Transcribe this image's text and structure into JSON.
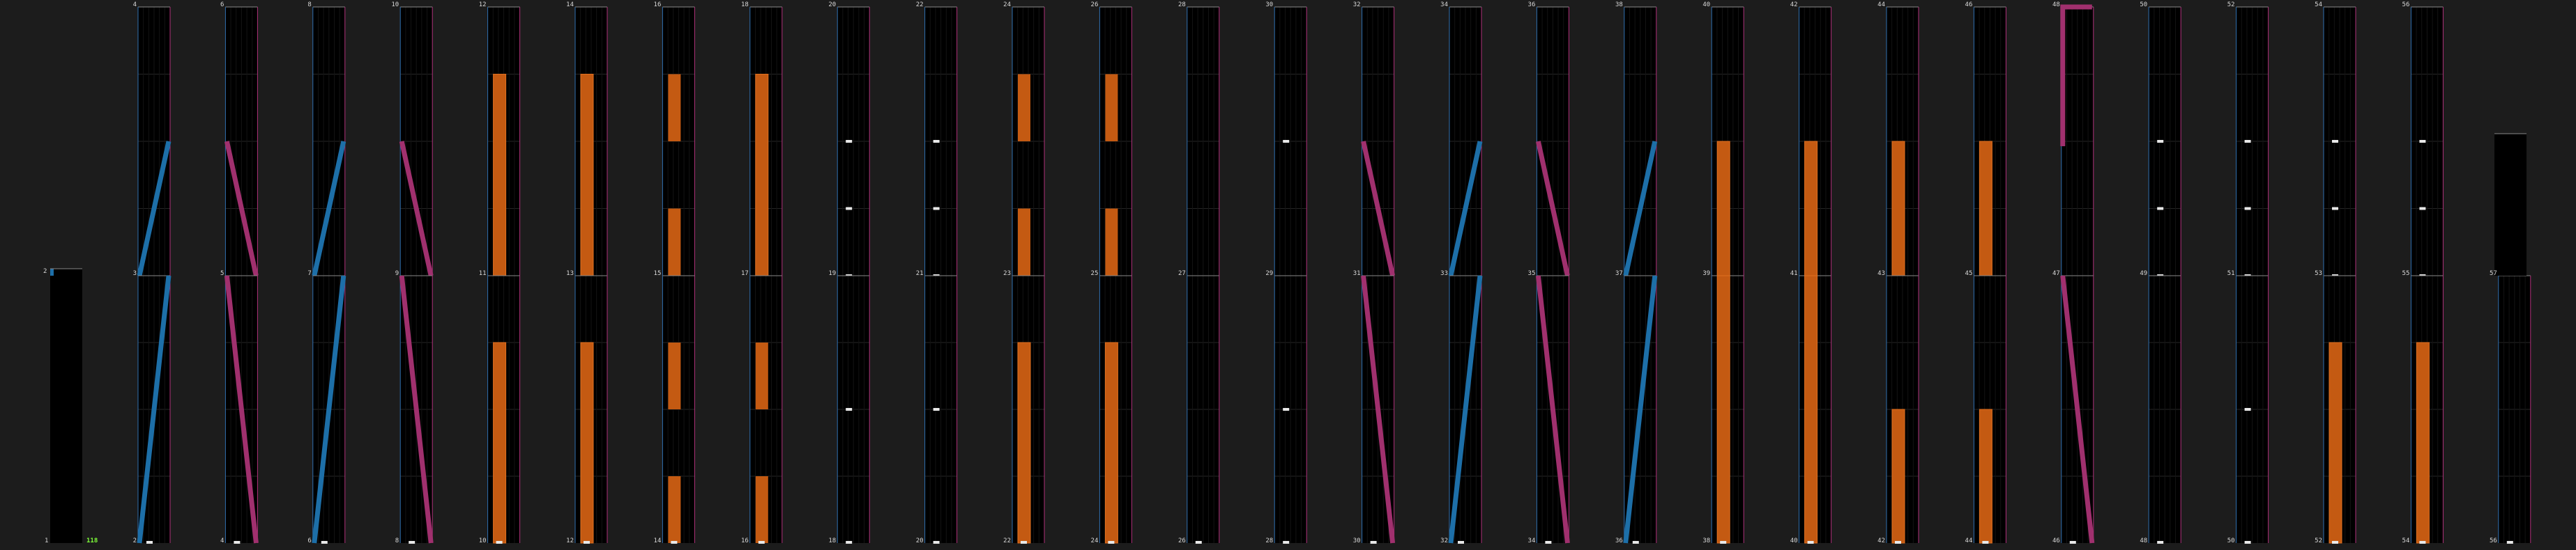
{
  "colors": {
    "background": "#1c1c1c",
    "column_fill": "#000000",
    "grid": "#262626",
    "edge_left": "#2f6fb0",
    "edge_right": "#b0307a",
    "edge_top": "#8a8a8a",
    "note_orange": "#c45a12",
    "ramp_blue": "#1d6fa8",
    "ramp_magenta": "#a0306e",
    "marker": "#e8e8e8",
    "counter": "#7fff3a"
  },
  "counter": {
    "text": "118"
  },
  "top_row": [
    {
      "label": "4",
      "lane": 0,
      "event": "ramp-up",
      "level": 0.5
    },
    {
      "label": "6",
      "lane": 1,
      "event": "ramp-down",
      "level": 0.5
    },
    {
      "label": "8",
      "lane": 2,
      "event": "ramp-up",
      "level": 0.5
    },
    {
      "label": "10",
      "lane": 3,
      "event": "ramp-down",
      "level": 0.5
    },
    {
      "label": "12",
      "lane": 4,
      "event": "bar",
      "level": 0.75
    },
    {
      "label": "14",
      "lane": 5,
      "event": "bar",
      "level": 0.75
    },
    {
      "label": "16",
      "lane": 6,
      "event": "split-bar",
      "level": 0.25
    },
    {
      "label": "18",
      "lane": 7,
      "event": "bar",
      "level": 0.75
    },
    {
      "label": "20",
      "lane": 8,
      "event": "ticks",
      "level": 0
    },
    {
      "label": "22",
      "lane": 9,
      "event": "ticks",
      "level": 0
    },
    {
      "label": "24",
      "lane": 10,
      "event": "split-bar",
      "level": 0.25
    },
    {
      "label": "26",
      "lane": 11,
      "event": "split-bar",
      "level": 0.25
    },
    {
      "label": "28",
      "lane": 12,
      "event": "empty",
      "level": 0
    },
    {
      "label": "30",
      "lane": 13,
      "event": "tick-mid",
      "level": 0
    },
    {
      "label": "32",
      "lane": 14,
      "event": "ramp-down",
      "level": 0.5
    },
    {
      "label": "34",
      "lane": 15,
      "event": "ramp-up",
      "level": 0.5
    },
    {
      "label": "36",
      "lane": 16,
      "event": "ramp-down",
      "level": 0.5
    },
    {
      "label": "38",
      "lane": 17,
      "event": "ramp-up",
      "level": 0.5
    },
    {
      "label": "40",
      "lane": 18,
      "event": "bar",
      "level": 0.5
    },
    {
      "label": "42",
      "lane": 19,
      "event": "bar",
      "level": 0.5
    },
    {
      "label": "44",
      "lane": 20,
      "event": "bar",
      "level": 0.5
    },
    {
      "label": "46",
      "lane": 21,
      "event": "bar",
      "level": 0.5
    },
    {
      "label": "48",
      "lane": 22,
      "event": "hook-down",
      "level": 1
    },
    {
      "label": "50",
      "lane": 23,
      "event": "ticks",
      "level": 0
    },
    {
      "label": "52",
      "lane": 24,
      "event": "ticks",
      "level": 0
    },
    {
      "label": "54",
      "lane": 25,
      "event": "ticks",
      "level": 0
    },
    {
      "label": "56",
      "lane": 26,
      "event": "ticks",
      "level": 0
    }
  ],
  "bottom_row": [
    {
      "label": "3",
      "lane": 0,
      "event": "ramp-up",
      "level": 1
    },
    {
      "label": "5",
      "lane": 1,
      "event": "ramp-down",
      "level": 1
    },
    {
      "label": "7",
      "lane": 2,
      "event": "ramp-up",
      "level": 1
    },
    {
      "label": "9",
      "lane": 3,
      "event": "ramp-down",
      "level": 1
    },
    {
      "label": "11",
      "lane": 4,
      "event": "bar",
      "level": 0.75
    },
    {
      "label": "13",
      "lane": 5,
      "event": "bar",
      "level": 0.75
    },
    {
      "label": "15",
      "lane": 6,
      "event": "split-bar",
      "level": 0.5
    },
    {
      "label": "17",
      "lane": 7,
      "event": "split-bar",
      "level": 0.5
    },
    {
      "label": "19",
      "lane": 8,
      "event": "tick-mid",
      "level": 0
    },
    {
      "label": "21",
      "lane": 9,
      "event": "tick-mid",
      "level": 0
    },
    {
      "label": "23",
      "lane": 10,
      "event": "bar",
      "level": 0.75
    },
    {
      "label": "25",
      "lane": 11,
      "event": "bar",
      "level": 0.75
    },
    {
      "label": "27",
      "lane": 12,
      "event": "empty",
      "level": 0
    },
    {
      "label": "29",
      "lane": 13,
      "event": "tick-mid",
      "level": 0
    },
    {
      "label": "31",
      "lane": 14,
      "event": "ramp-down",
      "level": 1
    },
    {
      "label": "33",
      "lane": 15,
      "event": "ramp-up",
      "level": 1
    },
    {
      "label": "35",
      "lane": 16,
      "event": "ramp-down",
      "level": 1
    },
    {
      "label": "37",
      "lane": 17,
      "event": "ramp-up",
      "level": 1
    },
    {
      "label": "39",
      "lane": 18,
      "event": "bar",
      "level": 1
    },
    {
      "label": "41",
      "lane": 19,
      "event": "bar",
      "level": 1
    },
    {
      "label": "43",
      "lane": 20,
      "event": "bar",
      "level": 0.5
    },
    {
      "label": "45",
      "lane": 21,
      "event": "bar",
      "level": 0.5
    },
    {
      "label": "47",
      "lane": 22,
      "event": "ramp-down",
      "level": 1
    },
    {
      "label": "49",
      "lane": 23,
      "event": "empty",
      "level": 0
    },
    {
      "label": "51",
      "lane": 24,
      "event": "tick-mid",
      "level": 0
    },
    {
      "label": "53",
      "lane": 25,
      "event": "bar",
      "level": 0.75
    },
    {
      "label": "55",
      "lane": 26,
      "event": "bar",
      "level": 0.75
    },
    {
      "label": "57",
      "lane": 27,
      "event": "empty",
      "level": 0
    }
  ],
  "baseline_row": [
    {
      "label": "2",
      "lane": 0
    },
    {
      "label": "4",
      "lane": 1
    },
    {
      "label": "6",
      "lane": 2
    },
    {
      "label": "8",
      "lane": 3
    },
    {
      "label": "10",
      "lane": 4
    },
    {
      "label": "12",
      "lane": 5
    },
    {
      "label": "14",
      "lane": 6
    },
    {
      "label": "16",
      "lane": 7
    },
    {
      "label": "18",
      "lane": 8
    },
    {
      "label": "20",
      "lane": 9
    },
    {
      "label": "22",
      "lane": 10
    },
    {
      "label": "24",
      "lane": 11
    },
    {
      "label": "26",
      "lane": 12
    },
    {
      "label": "28",
      "lane": 13
    },
    {
      "label": "30",
      "lane": 14
    },
    {
      "label": "32",
      "lane": 15
    },
    {
      "label": "34",
      "lane": 16
    },
    {
      "label": "36",
      "lane": 17
    },
    {
      "label": "38",
      "lane": 18
    },
    {
      "label": "40",
      "lane": 19
    },
    {
      "label": "42",
      "lane": 20
    },
    {
      "label": "44",
      "lane": 21
    },
    {
      "label": "46",
      "lane": 22
    },
    {
      "label": "48",
      "lane": 23
    },
    {
      "label": "50",
      "lane": 24
    },
    {
      "label": "52",
      "lane": 25
    },
    {
      "label": "54",
      "lane": 26
    },
    {
      "label": "56",
      "lane": 27
    }
  ],
  "first_column": {
    "top_label": "2",
    "bottom_label": "1"
  }
}
